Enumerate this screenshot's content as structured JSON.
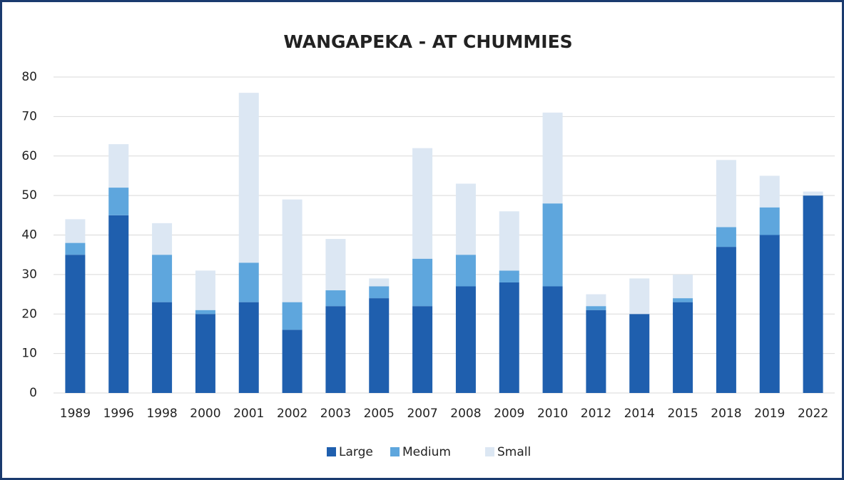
{
  "chart_data": {
    "type": "stacked_bar",
    "title": "WANGAPEKA - AT CHUMMIES",
    "categories": [
      "1989",
      "1996",
      "1998",
      "2000",
      "2001",
      "2002",
      "2003",
      "2005",
      "2007",
      "2008",
      "2009",
      "2010",
      "2012",
      "2014",
      "2015",
      "2018",
      "2019",
      "2022"
    ],
    "series": [
      {
        "name": "Large",
        "color": "#1f5fae",
        "values": [
          35,
          45,
          23,
          20,
          23,
          16,
          22,
          24,
          22,
          27,
          28,
          27,
          21,
          20,
          23,
          37,
          40,
          50
        ]
      },
      {
        "name": "Medium",
        "color": "#5ea6dd",
        "values": [
          3,
          7,
          12,
          1,
          10,
          7,
          4,
          3,
          12,
          8,
          3,
          21,
          1,
          0,
          1,
          5,
          7,
          0
        ]
      },
      {
        "name": "Small",
        "color": "#dce7f3",
        "values": [
          6,
          11,
          8,
          10,
          43,
          26,
          13,
          2,
          28,
          18,
          15,
          23,
          3,
          9,
          6,
          17,
          8,
          1
        ]
      }
    ],
    "ylim": [
      0,
      80
    ],
    "yticks": [
      0,
      10,
      20,
      30,
      40,
      50,
      60,
      70,
      80
    ],
    "grid": true,
    "legend": "bottom"
  }
}
